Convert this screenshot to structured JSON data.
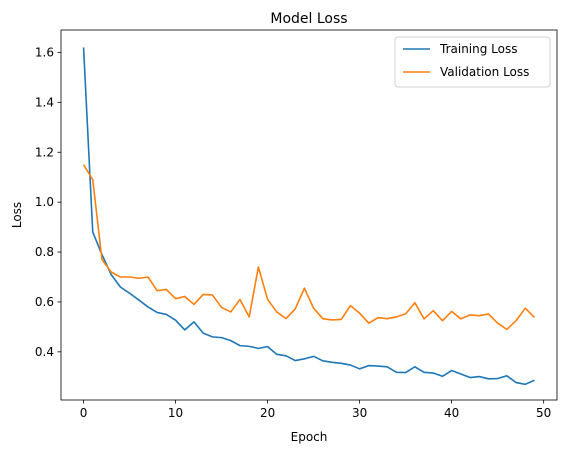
{
  "chart_data": {
    "type": "line",
    "title": "Model Loss",
    "xlabel": "Epoch",
    "ylabel": "Loss",
    "xlim": [
      -2.45,
      51.45
    ],
    "ylim": [
      0.207,
      1.69
    ],
    "xticks": [
      0,
      10,
      20,
      30,
      40,
      50
    ],
    "yticks": [
      0.4,
      0.6,
      0.8,
      1.0,
      1.2,
      1.4,
      1.6
    ],
    "grid": false,
    "legend_position": "top-right",
    "x": [
      0,
      1,
      2,
      3,
      4,
      5,
      6,
      7,
      8,
      9,
      10,
      11,
      12,
      13,
      14,
      15,
      16,
      17,
      18,
      19,
      20,
      21,
      22,
      23,
      24,
      25,
      26,
      27,
      28,
      29,
      30,
      31,
      32,
      33,
      34,
      35,
      36,
      37,
      38,
      39,
      40,
      41,
      42,
      43,
      44,
      45,
      46,
      47,
      48,
      49
    ],
    "series": [
      {
        "name": "Training Loss",
        "color": "#1f77b4",
        "values": [
          1.62,
          0.88,
          0.79,
          0.71,
          0.66,
          0.635,
          0.608,
          0.58,
          0.558,
          0.55,
          0.527,
          0.488,
          0.52,
          0.475,
          0.46,
          0.457,
          0.445,
          0.425,
          0.422,
          0.414,
          0.421,
          0.39,
          0.384,
          0.365,
          0.372,
          0.382,
          0.364,
          0.358,
          0.354,
          0.347,
          0.332,
          0.345,
          0.343,
          0.34,
          0.318,
          0.317,
          0.34,
          0.318,
          0.315,
          0.302,
          0.325,
          0.311,
          0.297,
          0.301,
          0.292,
          0.293,
          0.304,
          0.277,
          0.27,
          0.286
        ]
      },
      {
        "name": "Validation Loss",
        "color": "#ff7f0e",
        "values": [
          1.15,
          1.09,
          0.77,
          0.72,
          0.7,
          0.7,
          0.695,
          0.7,
          0.645,
          0.65,
          0.613,
          0.622,
          0.59,
          0.63,
          0.628,
          0.578,
          0.56,
          0.61,
          0.54,
          0.74,
          0.61,
          0.56,
          0.533,
          0.572,
          0.655,
          0.575,
          0.533,
          0.528,
          0.53,
          0.585,
          0.555,
          0.515,
          0.537,
          0.533,
          0.54,
          0.552,
          0.597,
          0.532,
          0.565,
          0.525,
          0.562,
          0.532,
          0.548,
          0.545,
          0.552,
          0.515,
          0.49,
          0.525,
          0.575,
          0.538
        ]
      }
    ]
  }
}
